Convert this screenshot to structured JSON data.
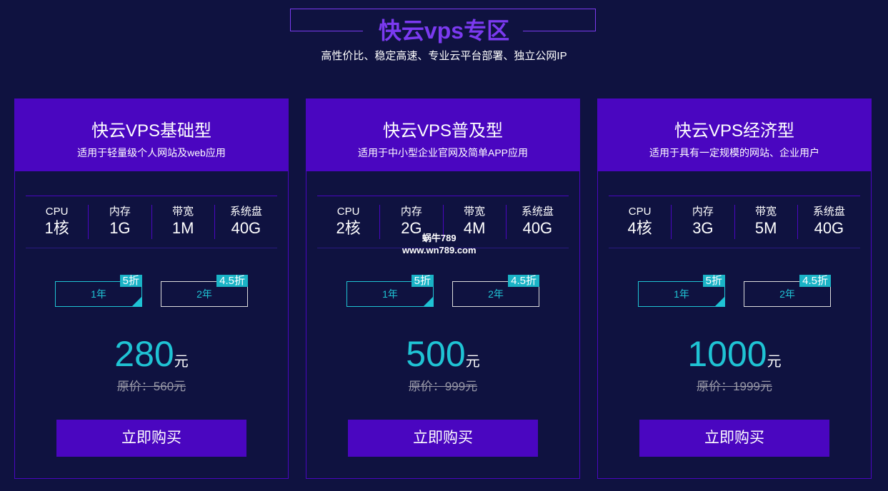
{
  "header": {
    "title": "快云vps专区",
    "subtitle": "高性价比、稳定高速、专业云平台部署、独立公网IP"
  },
  "colors": {
    "accent": "#4a06c0",
    "price": "#1fc3d4",
    "background": "#0f1240"
  },
  "watermark": {
    "line1": "蜗牛789",
    "line2": "www.wn789.com"
  },
  "plans": [
    {
      "name": "快云VPS基础型",
      "desc": "适用于轻量级个人网站及web应用",
      "specs": [
        {
          "label": "CPU",
          "value": "1核"
        },
        {
          "label": "内存",
          "value": "1G"
        },
        {
          "label": "带宽",
          "value": "1M"
        },
        {
          "label": "系统盘",
          "value": "40G"
        }
      ],
      "options": [
        {
          "label": "1年",
          "badge": "5折",
          "selected": true
        },
        {
          "label": "2年",
          "badge": "4.5折",
          "selected": false
        }
      ],
      "price": "280",
      "unit": "元",
      "original": "原价：560元",
      "buy": "立即购买"
    },
    {
      "name": "快云VPS普及型",
      "desc": "适用于中小型企业官网及简单APP应用",
      "specs": [
        {
          "label": "CPU",
          "value": "2核"
        },
        {
          "label": "内存",
          "value": "2G"
        },
        {
          "label": "带宽",
          "value": "4M"
        },
        {
          "label": "系统盘",
          "value": "40G"
        }
      ],
      "options": [
        {
          "label": "1年",
          "badge": "5折",
          "selected": true
        },
        {
          "label": "2年",
          "badge": "4.5折",
          "selected": false
        }
      ],
      "price": "500",
      "unit": "元",
      "original": "原价：999元",
      "buy": "立即购买"
    },
    {
      "name": "快云VPS经济型",
      "desc": "适用于具有一定规模的网站、企业用户",
      "specs": [
        {
          "label": "CPU",
          "value": "4核"
        },
        {
          "label": "内存",
          "value": "3G"
        },
        {
          "label": "带宽",
          "value": "5M"
        },
        {
          "label": "系统盘",
          "value": "40G"
        }
      ],
      "options": [
        {
          "label": "1年",
          "badge": "5折",
          "selected": true
        },
        {
          "label": "2年",
          "badge": "4.5折",
          "selected": false
        }
      ],
      "price": "1000",
      "unit": "元",
      "original": "原价：1999元",
      "buy": "立即购买"
    }
  ]
}
